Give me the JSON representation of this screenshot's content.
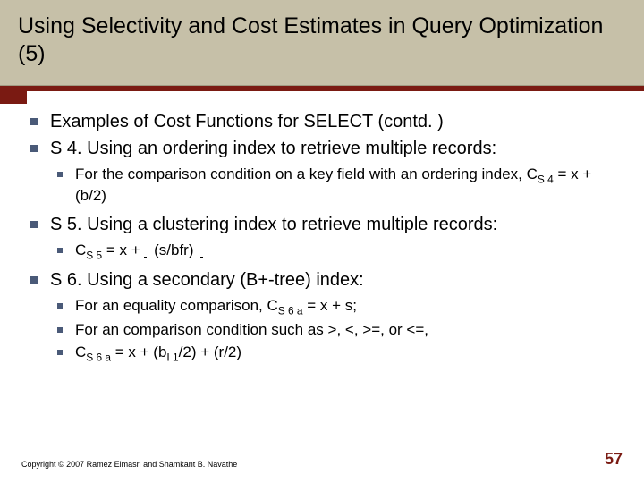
{
  "colors": {
    "title_bg": "#c6c0a8",
    "accent": "#7a1a12",
    "bullet": "#4a5a78",
    "text": "#000000",
    "page_bg": "#ffffff"
  },
  "typography": {
    "title_fontsize": 25,
    "level1_fontsize": 20,
    "level2_fontsize": 17,
    "copyright_fontsize": 9,
    "pagenum_fontsize": 18,
    "font_family": "Arial"
  },
  "title": "Using Selectivity and Cost Estimates in Query Optimization (5)",
  "bullets": {
    "b1": "Examples of Cost Functions for SELECT (contd. )",
    "b2": "S 4. Using an ordering index to retrieve multiple records:",
    "b2_1a": "For the comparison condition on a key field with an ordering index, C",
    "b2_1_sub": "S 4",
    "b2_1b": " = x + (b/2)",
    "b3": "S 5. Using a clustering index to retrieve multiple records:",
    "b3_1a": "C",
    "b3_1_sub": "S 5",
    "b3_1b": " = x + ",
    "b3_1c": " (s/bfr) ",
    "b4": "S 6. Using a secondary (B+-tree) index:",
    "b4_1a": "For an equality comparison, C",
    "b4_1_sub": "S 6 a",
    "b4_1b": " = x + s;",
    "b4_2": "For an comparison condition such as >, <, >=, or <=,",
    "b4_3a": "C",
    "b4_3_sub": "S 6 a",
    "b4_3b": " = x + (b",
    "b4_3_sub2": "I 1",
    "b4_3c": "/2) + (r/2)"
  },
  "footer": {
    "copyright": "Copyright © 2007 Ramez Elmasri and Shamkant B. Navathe",
    "page": "57"
  }
}
